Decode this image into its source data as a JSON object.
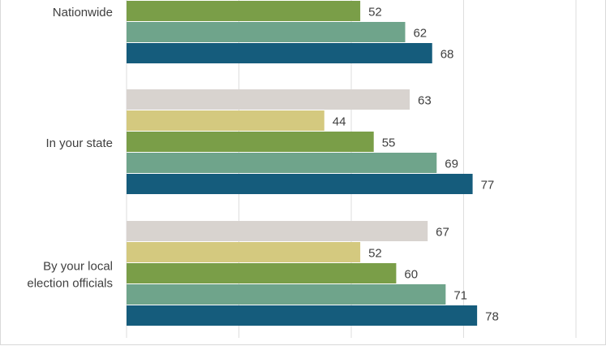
{
  "chart_data": {
    "type": "bar",
    "orientation": "horizontal",
    "categories": [
      "Nationwide",
      "In your state",
      "By your local\nelection officials"
    ],
    "series": [
      {
        "values": [
          null,
          63,
          67
        ],
        "color": "#d8d3cf"
      },
      {
        "values": [
          null,
          44,
          52
        ],
        "color": "#d4c97f"
      },
      {
        "values": [
          52,
          55,
          60
        ],
        "color": "#7a9e48"
      },
      {
        "values": [
          62,
          69,
          71
        ],
        "color": "#6fa48b"
      },
      {
        "values": [
          68,
          77,
          78
        ],
        "color": "#155c7c"
      }
    ],
    "xlim": [
      0,
      100
    ],
    "grid": true,
    "legend": "none",
    "data_labels": true
  }
}
